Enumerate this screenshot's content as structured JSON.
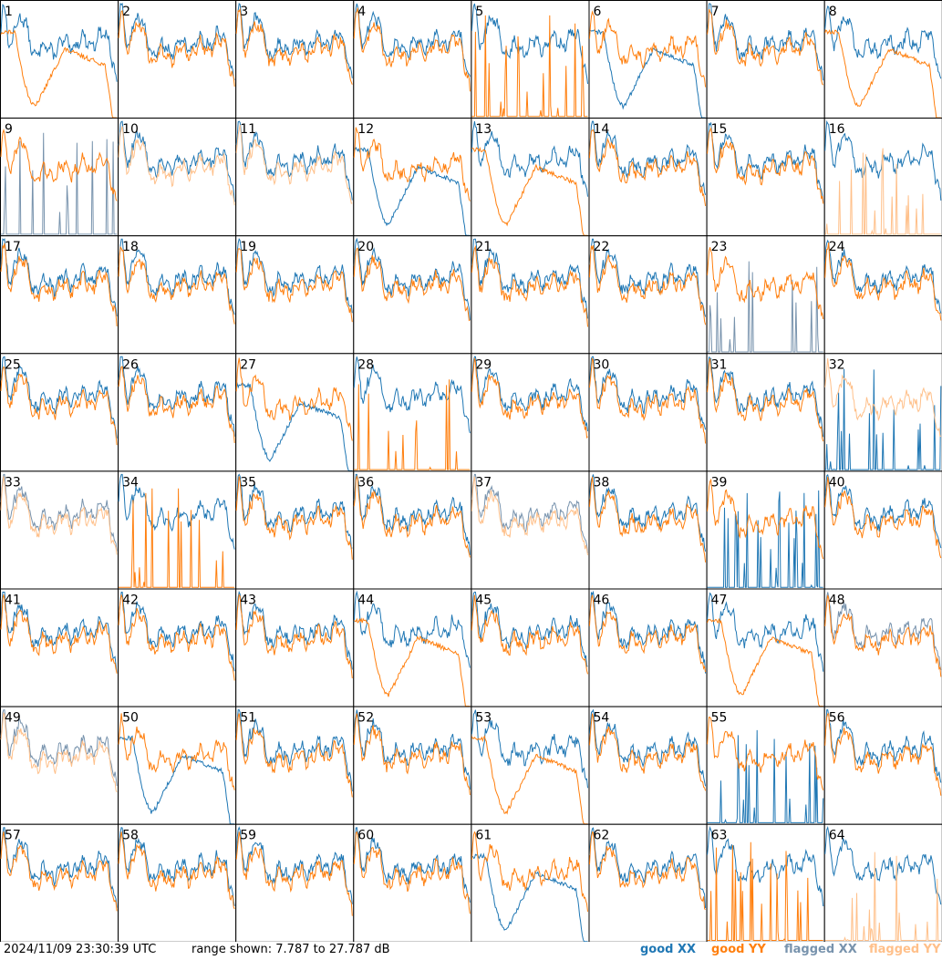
{
  "chart_data": {
    "type": "line",
    "panels": 64,
    "panel_labels": [
      "1",
      "2",
      "3",
      "4",
      "5",
      "6",
      "7",
      "8",
      "9",
      "10",
      "11",
      "12",
      "13",
      "14",
      "15",
      "16",
      "17",
      "18",
      "19",
      "20",
      "21",
      "22",
      "23",
      "24",
      "25",
      "26",
      "27",
      "28",
      "29",
      "30",
      "31",
      "32",
      "33",
      "34",
      "35",
      "36",
      "37",
      "38",
      "39",
      "40",
      "41",
      "42",
      "43",
      "44",
      "45",
      "46",
      "47",
      "48",
      "49",
      "50",
      "51",
      "52",
      "53",
      "54",
      "55",
      "56",
      "57",
      "58",
      "59",
      "60",
      "61",
      "62",
      "63",
      "64"
    ],
    "ylim": [
      7.787,
      27.787
    ],
    "series": [
      {
        "name": "good XX",
        "color": "#1f77b4"
      },
      {
        "name": "good YY",
        "color": "#ff7f0e"
      },
      {
        "name": "flagged XX",
        "color": "#7893ad"
      },
      {
        "name": "flagged YY",
        "color": "#ffc08a"
      }
    ],
    "panel_info": [
      {
        "p": "1",
        "xx": "n",
        "yy": "d",
        "f": 0
      },
      {
        "p": "2",
        "xx": "n",
        "yy": "n",
        "f": 0
      },
      {
        "p": "3",
        "xx": "n",
        "yy": "n",
        "f": 0
      },
      {
        "p": "4",
        "xx": "n",
        "yy": "n",
        "f": 0
      },
      {
        "p": "5",
        "xx": "n",
        "yy": "s",
        "f": 0
      },
      {
        "p": "6",
        "xx": "d",
        "yy": "n",
        "f": 0
      },
      {
        "p": "7",
        "xx": "n",
        "yy": "n",
        "f": 0
      },
      {
        "p": "8",
        "xx": "n",
        "yy": "d",
        "f": 0
      },
      {
        "p": "9",
        "xx": "s",
        "yy": "n",
        "f": 1
      },
      {
        "p": "10",
        "xx": "n",
        "yy": "n",
        "f": 2
      },
      {
        "p": "11",
        "xx": "n",
        "yy": "n",
        "f": 2
      },
      {
        "p": "12",
        "xx": "d",
        "yy": "n",
        "f": 0
      },
      {
        "p": "13",
        "xx": "n",
        "yy": "d",
        "f": 0
      },
      {
        "p": "14",
        "xx": "n",
        "yy": "n",
        "f": 0
      },
      {
        "p": "15",
        "xx": "n",
        "yy": "n",
        "f": 0
      },
      {
        "p": "16",
        "xx": "n",
        "yy": "s",
        "f": 2
      },
      {
        "p": "17",
        "xx": "n",
        "yy": "n",
        "f": 0
      },
      {
        "p": "18",
        "xx": "n",
        "yy": "n",
        "f": 0
      },
      {
        "p": "19",
        "xx": "n",
        "yy": "n",
        "f": 0
      },
      {
        "p": "20",
        "xx": "n",
        "yy": "n",
        "f": 0
      },
      {
        "p": "21",
        "xx": "n",
        "yy": "n",
        "f": 0
      },
      {
        "p": "22",
        "xx": "n",
        "yy": "n",
        "f": 0
      },
      {
        "p": "23",
        "xx": "s",
        "yy": "n",
        "f": 1
      },
      {
        "p": "24",
        "xx": "n",
        "yy": "n",
        "f": 0
      },
      {
        "p": "25",
        "xx": "n",
        "yy": "n",
        "f": 0
      },
      {
        "p": "26",
        "xx": "n",
        "yy": "n",
        "f": 0
      },
      {
        "p": "27",
        "xx": "d",
        "yy": "n",
        "f": 0
      },
      {
        "p": "28",
        "xx": "n",
        "yy": "s",
        "f": 0
      },
      {
        "p": "29",
        "xx": "n",
        "yy": "n",
        "f": 0
      },
      {
        "p": "30",
        "xx": "n",
        "yy": "n",
        "f": 0
      },
      {
        "p": "31",
        "xx": "n",
        "yy": "n",
        "f": 0
      },
      {
        "p": "32",
        "xx": "s",
        "yy": "n",
        "f": 2
      },
      {
        "p": "33",
        "xx": "n",
        "yy": "n",
        "f": 3
      },
      {
        "p": "34",
        "xx": "n",
        "yy": "s",
        "f": 0
      },
      {
        "p": "35",
        "xx": "n",
        "yy": "n",
        "f": 0
      },
      {
        "p": "36",
        "xx": "n",
        "yy": "n",
        "f": 0
      },
      {
        "p": "37",
        "xx": "n",
        "yy": "n",
        "f": 3
      },
      {
        "p": "38",
        "xx": "n",
        "yy": "n",
        "f": 0
      },
      {
        "p": "39",
        "xx": "s",
        "yy": "n",
        "f": 0
      },
      {
        "p": "40",
        "xx": "n",
        "yy": "n",
        "f": 0
      },
      {
        "p": "41",
        "xx": "n",
        "yy": "n",
        "f": 0
      },
      {
        "p": "42",
        "xx": "n",
        "yy": "n",
        "f": 0
      },
      {
        "p": "43",
        "xx": "n",
        "yy": "n",
        "f": 0
      },
      {
        "p": "44",
        "xx": "n",
        "yy": "d",
        "f": 0
      },
      {
        "p": "45",
        "xx": "n",
        "yy": "n",
        "f": 0
      },
      {
        "p": "46",
        "xx": "n",
        "yy": "n",
        "f": 0
      },
      {
        "p": "47",
        "xx": "n",
        "yy": "d",
        "f": 0
      },
      {
        "p": "48",
        "xx": "n",
        "yy": "n",
        "f": 1
      },
      {
        "p": "49",
        "xx": "n",
        "yy": "n",
        "f": 3
      },
      {
        "p": "50",
        "xx": "d",
        "yy": "n",
        "f": 0
      },
      {
        "p": "51",
        "xx": "n",
        "yy": "n",
        "f": 0
      },
      {
        "p": "52",
        "xx": "n",
        "yy": "n",
        "f": 0
      },
      {
        "p": "53",
        "xx": "n",
        "yy": "d",
        "f": 0
      },
      {
        "p": "54",
        "xx": "n",
        "yy": "n",
        "f": 0
      },
      {
        "p": "55",
        "xx": "s",
        "yy": "n",
        "f": 0
      },
      {
        "p": "56",
        "xx": "n",
        "yy": "n",
        "f": 0
      },
      {
        "p": "57",
        "xx": "n",
        "yy": "n",
        "f": 0
      },
      {
        "p": "58",
        "xx": "n",
        "yy": "n",
        "f": 0
      },
      {
        "p": "59",
        "xx": "n",
        "yy": "n",
        "f": 0
      },
      {
        "p": "60",
        "xx": "n",
        "yy": "n",
        "f": 0
      },
      {
        "p": "61",
        "xx": "d",
        "yy": "n",
        "f": 0
      },
      {
        "p": "62",
        "xx": "n",
        "yy": "n",
        "f": 0
      },
      {
        "p": "63",
        "xx": "n",
        "yy": "s",
        "f": 0
      },
      {
        "p": "64",
        "xx": "n",
        "yy": "s",
        "f": 2
      }
    ]
  },
  "footer": {
    "timestamp": "2024/11/09 23:30:39 UTC",
    "range": "range shown: 7.787 to 27.787 dB",
    "legend": {
      "good_xx": "good XX",
      "good_yy": "good YY",
      "flagged_xx": "flagged XX",
      "flagged_yy": "flagged YY"
    }
  }
}
